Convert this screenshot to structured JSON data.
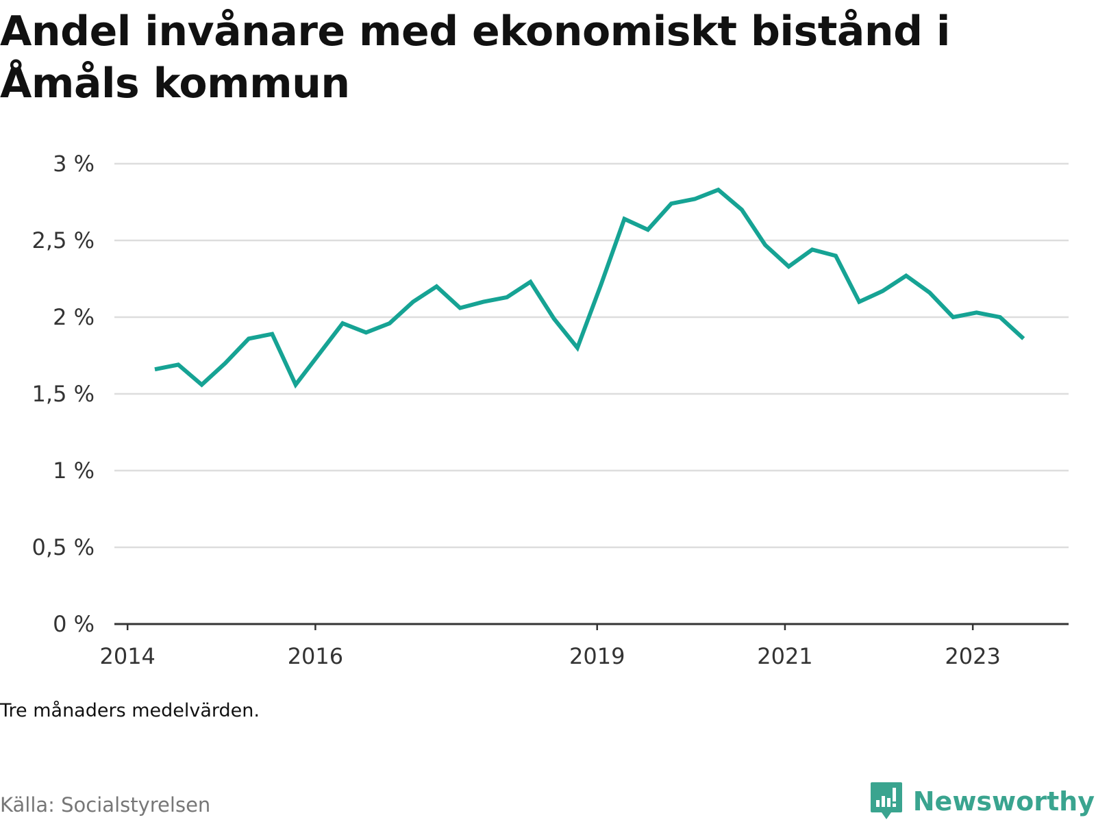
{
  "page": {
    "title": "Andel invånare med ekonomiskt bistånd i Åmåls kommun",
    "note": "Tre månaders medelvärden.",
    "source": "Källa: Socialstyrelsen",
    "brand": "Newsworthy"
  },
  "colors": {
    "line": "#16a394",
    "grid": "#dddddd",
    "axis": "#333333",
    "brand": "#3aa48f"
  },
  "icons": {
    "brand_logo": "newsworthy-logo-icon"
  },
  "chart_data": {
    "type": "line",
    "title": "Andel invånare med ekonomiskt bistånd i Åmåls kommun",
    "xlabel": "",
    "ylabel": "",
    "x_tick_labels": [
      "2014",
      "2016",
      "2019",
      "2021",
      "2023"
    ],
    "x_tick_values": [
      2014.0,
      2016.0,
      2019.0,
      2021.0,
      2023.0
    ],
    "xlim": [
      2013.86,
      2024.02
    ],
    "y_tick_labels": [
      "0 %",
      "0,5 %",
      "1 %",
      "1,5 %",
      "2 %",
      "2,5 %",
      "3 %"
    ],
    "y_tick_values": [
      0,
      0.5,
      1,
      1.5,
      2,
      2.5,
      3
    ],
    "ylim": [
      0,
      3
    ],
    "grid": true,
    "legend": "none",
    "series": [
      {
        "x": [
          2014.29,
          2014.54,
          2014.79,
          2015.04,
          2015.29,
          2015.54,
          2015.79,
          2016.04,
          2016.29,
          2016.54,
          2016.79,
          2017.04,
          2017.29,
          2017.54,
          2017.79,
          2018.04,
          2018.29,
          2018.54,
          2018.79,
          2019.04,
          2019.29,
          2019.54,
          2019.79,
          2020.04,
          2020.29,
          2020.54,
          2020.79,
          2021.04,
          2021.29,
          2021.54,
          2021.79,
          2022.04,
          2022.29,
          2022.54,
          2022.79,
          2023.04,
          2023.29,
          2023.54
        ],
        "values": [
          1.66,
          1.69,
          1.56,
          1.7,
          1.86,
          1.89,
          1.56,
          1.76,
          1.96,
          1.9,
          1.96,
          2.1,
          2.2,
          2.06,
          2.1,
          2.13,
          2.23,
          1.99,
          1.8,
          2.21,
          2.64,
          2.57,
          2.74,
          2.77,
          2.83,
          2.7,
          2.47,
          2.33,
          2.44,
          2.4,
          2.1,
          2.17,
          2.27,
          2.16,
          2.0,
          2.03,
          2.0,
          1.86
        ]
      }
    ]
  }
}
